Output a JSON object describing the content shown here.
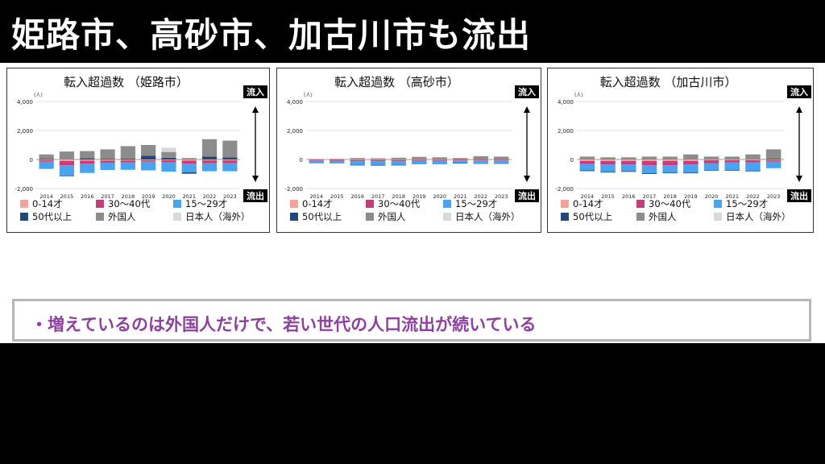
{
  "slide": {
    "title": "姫路市、高砂市、加古川市も流出",
    "summary": "・増えているのは外国人だけで、若い世代の人口流出が続いている"
  },
  "labels": {
    "inflow": "流入",
    "outflow": "流出",
    "unit": "(人)"
  },
  "colors": {
    "age_0_14": "#f4a39a",
    "age_15_29": "#4aa3ee",
    "age_30_40": "#c63c7e",
    "age_50_plus": "#1f497d",
    "foreign": "#8c8c8c",
    "japanese_abroad": "#d9d9d9"
  },
  "chart_data": [
    {
      "type": "bar",
      "stacked": true,
      "title": "転入超過数 （姫路市）",
      "categories": [
        "2014",
        "2015",
        "2016",
        "2017",
        "2018",
        "2019",
        "2020",
        "2021",
        "2022",
        "2023"
      ],
      "y_ticks": [
        "4,000",
        "2,000",
        "0",
        "-2,000"
      ],
      "ylim": [
        -2000,
        4000
      ],
      "legend": [
        "0-14才",
        "30〜40代",
        "15〜29才",
        "50代以上",
        "外国人",
        "日本人（海外）"
      ],
      "series": [
        {
          "name": "0-14才",
          "key": "age_0_14",
          "values": [
            -50,
            -100,
            -80,
            -70,
            -60,
            -50,
            -40,
            -80,
            -60,
            -60
          ]
        },
        {
          "name": "30〜40代",
          "key": "age_30_40",
          "values": [
            -100,
            -300,
            -200,
            -150,
            -150,
            -100,
            -150,
            -200,
            -200,
            -200
          ]
        },
        {
          "name": "15〜29才",
          "key": "age_15_29",
          "values": [
            -500,
            -700,
            -650,
            -500,
            -500,
            -600,
            -650,
            -600,
            -550,
            -550
          ]
        },
        {
          "name": "50代以上",
          "key": "age_50_plus",
          "values": [
            50,
            -50,
            80,
            50,
            70,
            250,
            120,
            -100,
            200,
            150
          ]
        },
        {
          "name": "外国人",
          "key": "foreign",
          "values": [
            300,
            550,
            500,
            650,
            850,
            750,
            400,
            100,
            1200,
            1150
          ]
        },
        {
          "name": "日本人（海外）",
          "key": "japanese_abroad",
          "values": [
            0,
            0,
            0,
            0,
            0,
            0,
            300,
            0,
            0,
            0
          ]
        }
      ]
    },
    {
      "type": "bar",
      "stacked": true,
      "title": "転入超過数 （高砂市）",
      "categories": [
        "2014",
        "2015",
        "2016",
        "2017",
        "2018",
        "2019",
        "2020",
        "2021",
        "2022",
        "2023"
      ],
      "y_ticks": [
        "4,000",
        "2,000",
        "0",
        "-2,000"
      ],
      "ylim": [
        -2000,
        4000
      ],
      "legend": [
        "0-14才",
        "30〜40代",
        "15〜29才",
        "50代以上",
        "外国人",
        "日本人（海外）"
      ],
      "series": [
        {
          "name": "0-14才",
          "key": "age_0_14",
          "values": [
            -20,
            -20,
            -40,
            -40,
            -40,
            -30,
            -30,
            -20,
            -20,
            -20
          ]
        },
        {
          "name": "30〜40代",
          "key": "age_30_40",
          "values": [
            -50,
            -60,
            -80,
            -80,
            -80,
            -60,
            -60,
            -50,
            -50,
            -50
          ]
        },
        {
          "name": "15〜29才",
          "key": "age_15_29",
          "values": [
            -150,
            -150,
            -250,
            -250,
            -250,
            -200,
            -200,
            -180,
            -200,
            -200
          ]
        },
        {
          "name": "50代以上",
          "key": "age_50_plus",
          "values": [
            -30,
            -20,
            -40,
            -50,
            -40,
            -20,
            -20,
            -20,
            -20,
            -20
          ]
        },
        {
          "name": "外国人",
          "key": "foreign",
          "values": [
            30,
            40,
            100,
            80,
            120,
            180,
            150,
            100,
            230,
            200
          ]
        },
        {
          "name": "日本人（海外）",
          "key": "japanese_abroad",
          "values": [
            0,
            0,
            0,
            0,
            0,
            0,
            0,
            0,
            0,
            0
          ]
        }
      ]
    },
    {
      "type": "bar",
      "stacked": true,
      "title": "転入超過数 （加古川市）",
      "categories": [
        "2014",
        "2015",
        "2016",
        "2017",
        "2018",
        "2019",
        "2020",
        "2021",
        "2022",
        "2023"
      ],
      "y_ticks": [
        "4,000",
        "2,000",
        "0",
        "-2,000"
      ],
      "ylim": [
        -2000,
        4000
      ],
      "legend": [
        "0-14才",
        "30〜40代",
        "15〜29才",
        "50代以上",
        "外国人",
        "日本人（海外）"
      ],
      "series": [
        {
          "name": "0-14才",
          "key": "age_0_14",
          "values": [
            -100,
            -100,
            -100,
            -100,
            -100,
            -100,
            -50,
            -50,
            -50,
            -50
          ]
        },
        {
          "name": "30〜40代",
          "key": "age_30_40",
          "values": [
            -200,
            -250,
            -250,
            -300,
            -300,
            -250,
            -200,
            -150,
            -150,
            -100
          ]
        },
        {
          "name": "15〜29才",
          "key": "age_15_29",
          "values": [
            -450,
            -500,
            -450,
            -550,
            -500,
            -550,
            -500,
            -550,
            -600,
            -450
          ]
        },
        {
          "name": "50代以上",
          "key": "age_50_plus",
          "values": [
            -50,
            -50,
            -50,
            -50,
            -50,
            -50,
            -20,
            -20,
            -20,
            50
          ]
        },
        {
          "name": "外国人",
          "key": "foreign",
          "values": [
            200,
            150,
            150,
            200,
            200,
            350,
            200,
            200,
            350,
            650
          ]
        },
        {
          "name": "日本人（海外）",
          "key": "japanese_abroad",
          "values": [
            0,
            0,
            0,
            0,
            0,
            0,
            0,
            0,
            0,
            0
          ]
        }
      ]
    }
  ]
}
